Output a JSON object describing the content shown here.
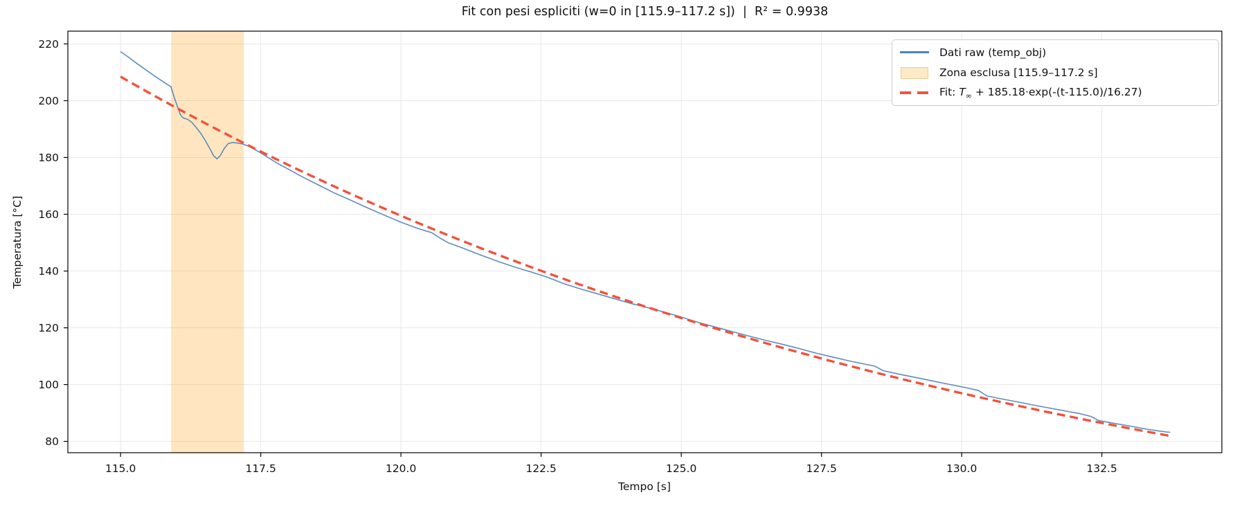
{
  "figure": {
    "title": "Fit con pesi espliciti (w=0 in [115.9–117.2 s])  |  R² = 0.9938"
  },
  "legend": {
    "items": [
      {
        "label": "Dati raw (temp_obj)",
        "swatch": "line"
      },
      {
        "label": "Zona esclusa [115.9–117.2 s]",
        "swatch": "patch"
      },
      {
        "prefix": "Fit: ",
        "t_symbol": "T",
        "t_subscript": "∞",
        "formula": " + 185.18·exp(-(t-115.0)/16.27)",
        "swatch": "dashes"
      }
    ]
  },
  "chart_data": {
    "type": "line",
    "title": "Fit con pesi espliciti (w=0 in [115.9–117.2 s])  |  R² = 0.9938",
    "xlabel": "Tempo [s]",
    "ylabel": "Temperatura [°C]",
    "xlim": [
      114.06,
      134.64
    ],
    "ylim": [
      76.0,
      224.5
    ],
    "x_ticks": [
      115.0,
      117.5,
      120.0,
      122.5,
      125.0,
      127.5,
      130.0,
      132.5
    ],
    "x_tick_labels": [
      "115.0",
      "117.5",
      "120.0",
      "122.5",
      "125.0",
      "127.5",
      "130.0",
      "132.5"
    ],
    "y_ticks": [
      80,
      100,
      120,
      140,
      160,
      180,
      200,
      220
    ],
    "y_tick_labels": [
      "80",
      "100",
      "120",
      "140",
      "160",
      "180",
      "200",
      "220"
    ],
    "grid": true,
    "legend_position": "upper right",
    "r_squared": 0.9938,
    "excluded_zone": {
      "name": "Zona esclusa [115.9–117.2 s]",
      "x0": 115.9,
      "x1": 117.2,
      "fill": "rgba(255,166,32,0.28)"
    },
    "fit": {
      "name": "Fit: T∞ + 185.18·exp(-(t-115.0)/16.27)",
      "model": "T(t) = T_inf + A·exp(-(t-t0)/tau)",
      "A": 185.18,
      "t0": 115.0,
      "tau": 16.27,
      "T_inf_estimated_from_plot": 23.3,
      "t_start": 115.0,
      "t_end": 133.72,
      "color": "#f4503c",
      "dash": [
        12,
        7
      ],
      "line_width": 3.4
    },
    "raw": {
      "name": "Dati raw (temp_obj)",
      "color": "#4e82b4",
      "line_width": 1.6,
      "points": [
        [
          115.0,
          217.3
        ],
        [
          115.15,
          215.2
        ],
        [
          115.3,
          213.0
        ],
        [
          115.45,
          210.9
        ],
        [
          115.62,
          208.5
        ],
        [
          115.78,
          206.4
        ],
        [
          115.9,
          204.9
        ],
        [
          115.96,
          201.0
        ],
        [
          116.02,
          197.6
        ],
        [
          116.07,
          195.0
        ],
        [
          116.12,
          193.9
        ],
        [
          116.2,
          193.4
        ],
        [
          116.27,
          192.4
        ],
        [
          116.35,
          190.5
        ],
        [
          116.43,
          188.5
        ],
        [
          116.51,
          186.0
        ],
        [
          116.59,
          183.2
        ],
        [
          116.66,
          180.6
        ],
        [
          116.72,
          179.5
        ],
        [
          116.78,
          180.7
        ],
        [
          116.85,
          183.2
        ],
        [
          116.92,
          184.9
        ],
        [
          117.0,
          185.3
        ],
        [
          117.08,
          185.1
        ],
        [
          117.17,
          184.8
        ],
        [
          117.28,
          184.0
        ],
        [
          117.45,
          182.2
        ],
        [
          117.6,
          180.4
        ],
        [
          117.8,
          177.9
        ],
        [
          118.0,
          175.8
        ],
        [
          118.2,
          173.6
        ],
        [
          118.32,
          172.4
        ],
        [
          118.5,
          170.6
        ],
        [
          118.8,
          167.6
        ],
        [
          119.1,
          165.0
        ],
        [
          119.4,
          162.3
        ],
        [
          119.7,
          159.7
        ],
        [
          120.0,
          157.2
        ],
        [
          120.3,
          155.0
        ],
        [
          120.55,
          153.5
        ],
        [
          120.7,
          151.6
        ],
        [
          120.85,
          149.9
        ],
        [
          121.1,
          148.1
        ],
        [
          121.4,
          145.8
        ],
        [
          121.7,
          143.6
        ],
        [
          122.0,
          141.6
        ],
        [
          122.3,
          139.8
        ],
        [
          122.6,
          137.9
        ],
        [
          122.9,
          135.6
        ],
        [
          123.2,
          133.7
        ],
        [
          123.5,
          132.0
        ],
        [
          123.8,
          130.3
        ],
        [
          124.1,
          128.6
        ],
        [
          124.4,
          127.1
        ],
        [
          124.7,
          125.5
        ],
        [
          125.0,
          123.8
        ],
        [
          125.3,
          121.9
        ],
        [
          125.6,
          120.3
        ],
        [
          125.9,
          118.7
        ],
        [
          126.2,
          117.1
        ],
        [
          126.5,
          115.6
        ],
        [
          126.8,
          114.2
        ],
        [
          127.1,
          112.7
        ],
        [
          127.4,
          111.1
        ],
        [
          127.7,
          109.7
        ],
        [
          128.0,
          108.3
        ],
        [
          128.3,
          107.1
        ],
        [
          128.45,
          106.5
        ],
        [
          128.6,
          104.9
        ],
        [
          128.9,
          103.6
        ],
        [
          129.2,
          102.4
        ],
        [
          129.5,
          101.2
        ],
        [
          129.8,
          100.0
        ],
        [
          130.1,
          98.8
        ],
        [
          130.3,
          97.9
        ],
        [
          130.45,
          96.0
        ],
        [
          130.7,
          95.0
        ],
        [
          131.0,
          93.9
        ],
        [
          131.3,
          92.7
        ],
        [
          131.6,
          91.6
        ],
        [
          131.9,
          90.5
        ],
        [
          132.1,
          89.8
        ],
        [
          132.3,
          88.8
        ],
        [
          132.45,
          87.3
        ],
        [
          132.7,
          86.4
        ],
        [
          133.0,
          85.4
        ],
        [
          133.3,
          84.3
        ],
        [
          133.5,
          83.7
        ],
        [
          133.65,
          83.3
        ],
        [
          133.72,
          83.2
        ]
      ]
    },
    "style": {
      "grid_color": "#e7e7e7",
      "spine_color": "#000000",
      "tick_color": "#000000",
      "text_color": "#111111"
    }
  }
}
